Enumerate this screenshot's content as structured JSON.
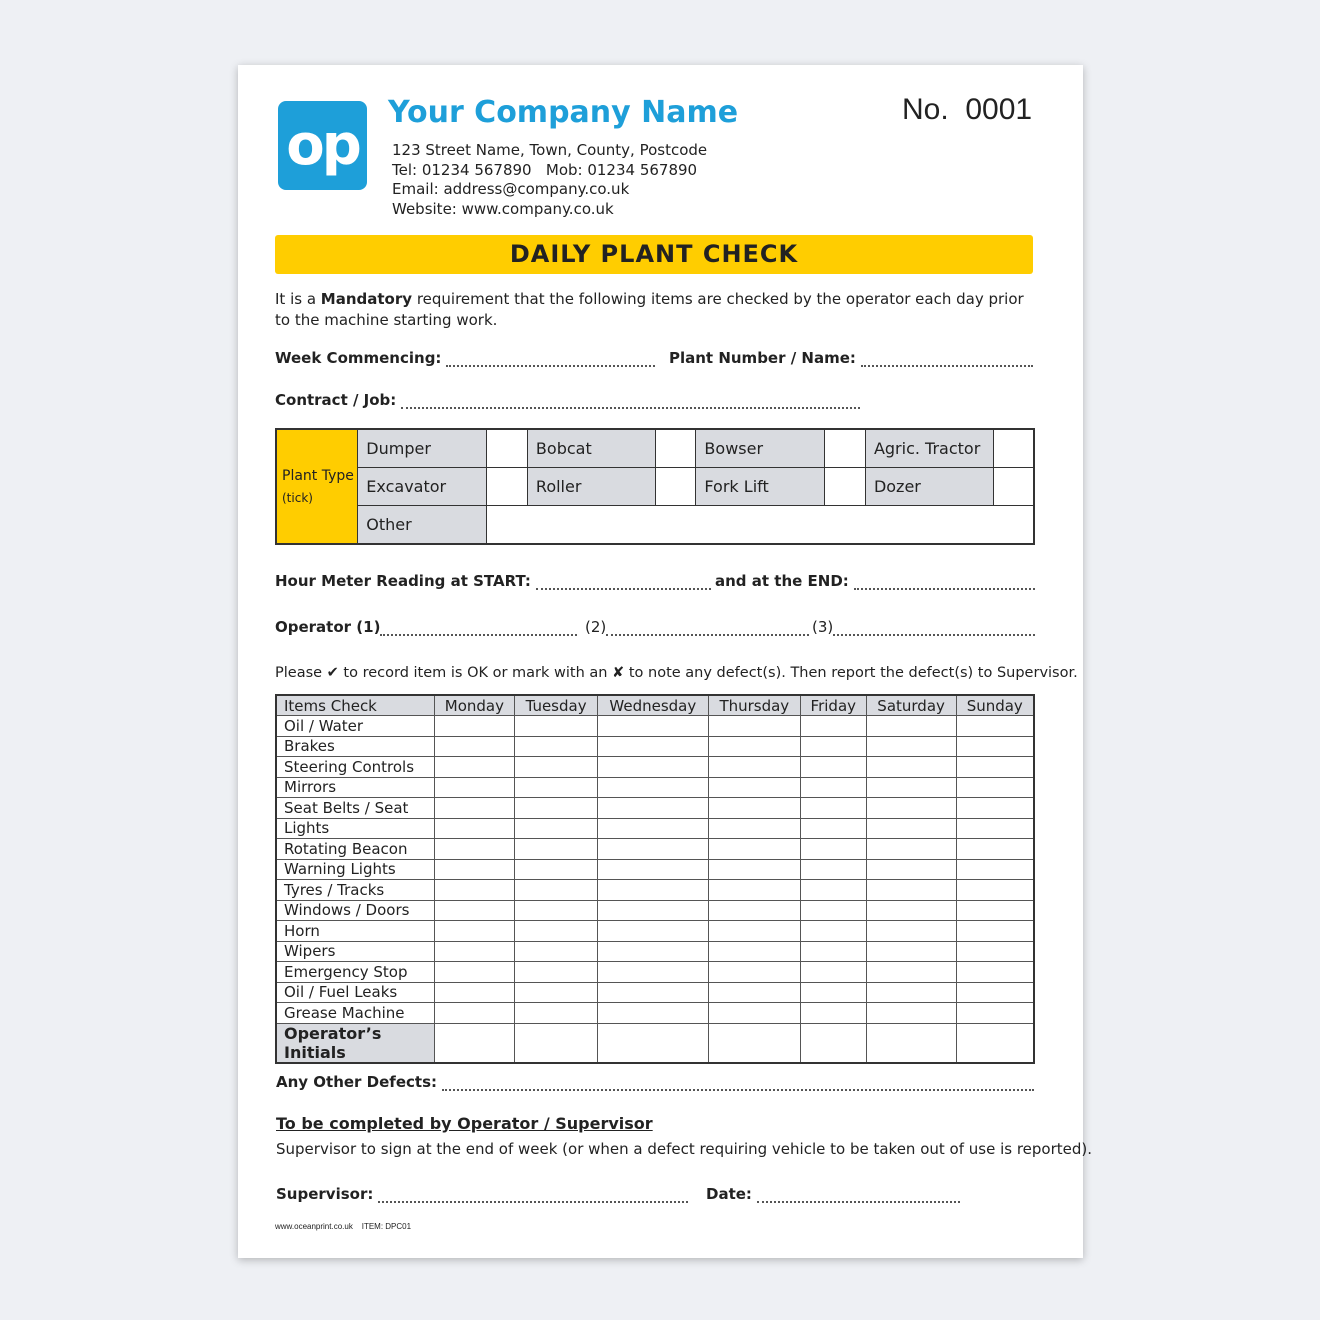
{
  "header": {
    "logo_text": "op",
    "company_name": "Your Company Name",
    "address": "123 Street Name, Town, County, Postcode",
    "phones": "Tel: 01234 567890   Mob: 01234 567890",
    "email": "Email: address@company.co.uk",
    "website": "Website: www.company.co.uk",
    "number": "No.  0001"
  },
  "title": "DAILY PLANT CHECK",
  "intro": {
    "pre": "It is a ",
    "bold": "Mandatory",
    "post": " requirement that the following items are checked by the operator each day prior to the machine starting work."
  },
  "fields": {
    "week": "Week Commencing:",
    "plant": "Plant Number / Name:",
    "contract": "Contract / Job:",
    "hour_start": "Hour Meter Reading at START:",
    "hour_end": "and at the END:",
    "operator1": "Operator (1)",
    "operator2": "(2)",
    "operator3": "(3)",
    "other_defects": "Any Other Defects:",
    "supervisor": "Supervisor:",
    "date": "Date:"
  },
  "plant_type": {
    "label": "Plant Type",
    "sub": "(tick)",
    "row1": [
      "Dumper",
      "Bobcat",
      "Bowser",
      "Agric. Tractor"
    ],
    "row2": [
      "Excavator",
      "Roller",
      "Fork Lift",
      "Dozer"
    ],
    "other": "Other"
  },
  "instruction": "Please ✔ to record item is OK or mark with an ✘ to note any defect(s). Then report the defect(s) to Supervisor.",
  "checks": {
    "headers": [
      "Items Check",
      "Monday",
      "Tuesday",
      "Wednesday",
      "Thursday",
      "Friday",
      "Saturday",
      "Sunday"
    ],
    "items": [
      "Oil / Water",
      "Brakes",
      "Steering Controls",
      "Mirrors",
      "Seat Belts / Seat",
      "Lights",
      "Rotating Beacon",
      "Warning Lights",
      "Tyres / Tracks",
      "Windows / Doors",
      "Horn",
      "Wipers",
      "Emergency Stop",
      "Oil / Fuel Leaks",
      "Grease Machine"
    ],
    "initials": "Operator’s Initials"
  },
  "completion": {
    "heading": "To be completed by Operator / Supervisor",
    "note": "Supervisor to sign at the end of week (or when a defect requiring vehicle to be taken out of use is reported)."
  },
  "footer": {
    "site": "www.oceanprint.co.uk",
    "item": "ITEM: DPC01"
  },
  "colors": {
    "brand": "#1e9fd9",
    "banner": "#ffcd00"
  }
}
